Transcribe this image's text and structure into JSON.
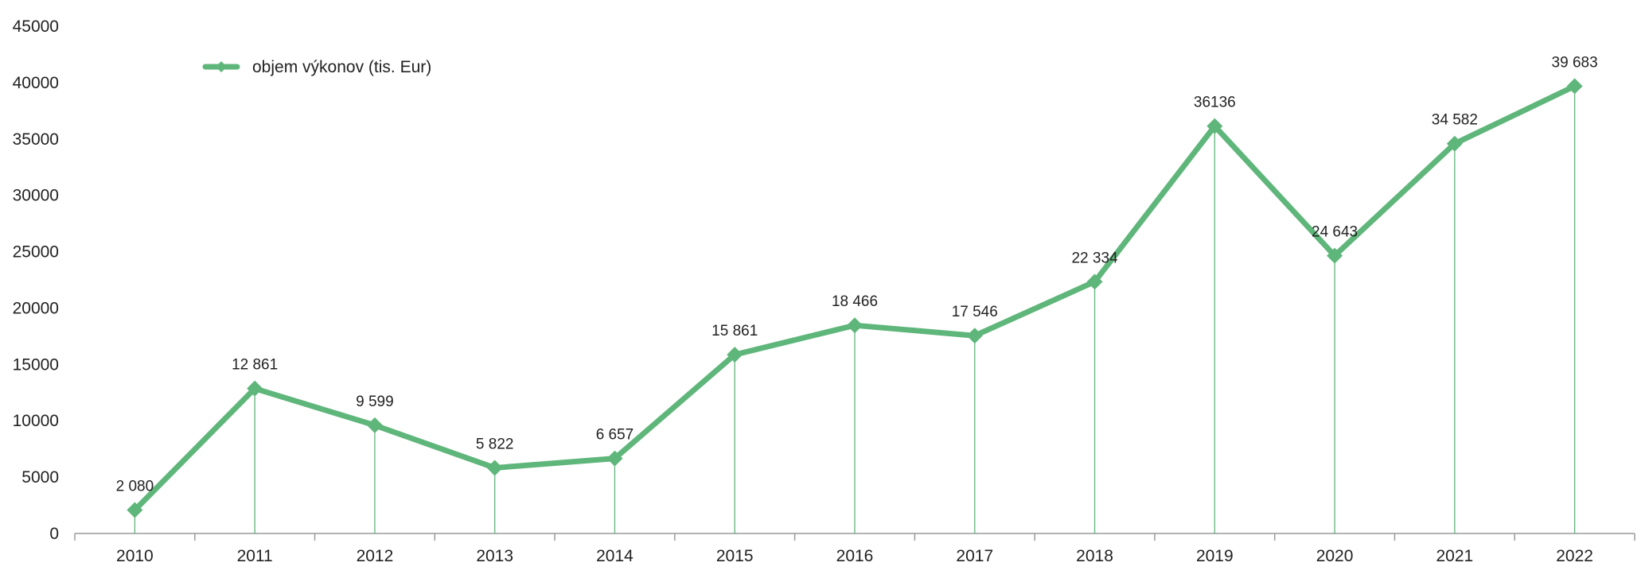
{
  "colors": {
    "series": "#5fb67a",
    "axis": "#9a9a9a",
    "text": "#222222"
  },
  "chart_data": {
    "type": "line",
    "title": "",
    "xlabel": "",
    "ylabel": "",
    "categories": [
      "2010",
      "2011",
      "2012",
      "2013",
      "2014",
      "2015",
      "2016",
      "2017",
      "2018",
      "2019",
      "2020",
      "2021",
      "2022"
    ],
    "series": [
      {
        "name": "objem výkonov (tis. Eur)",
        "values": [
          2080,
          12861,
          9599,
          5822,
          6657,
          15861,
          18466,
          17546,
          22334,
          36136,
          24643,
          34582,
          39683
        ],
        "data_labels": [
          "2 080",
          "12 861",
          "9 599",
          "5 822",
          "6 657",
          "15 861",
          "18 466",
          "17 546",
          "22 334",
          "36136",
          "24 643",
          "34 582",
          "39 683"
        ],
        "marker": "diamond",
        "drop_lines": true
      }
    ],
    "ylim": [
      0,
      45000
    ],
    "yticks": [
      "0",
      "5000",
      "10000",
      "15000",
      "20000",
      "25000",
      "30000",
      "35000",
      "40000",
      "45000"
    ],
    "grid": false,
    "legend": "top-left"
  }
}
